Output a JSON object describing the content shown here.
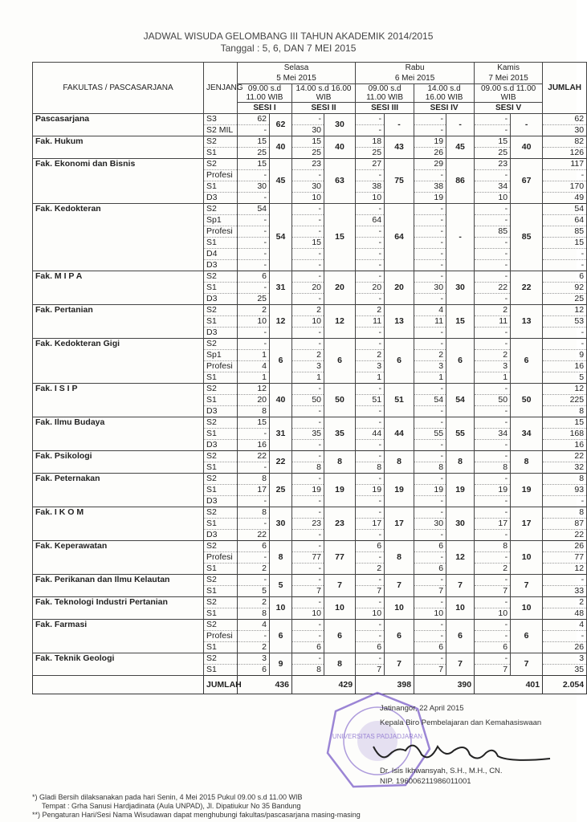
{
  "title": "JADWAL WISUDA GELOMBANG III TAHUN AKADEMIK 2014/2015",
  "subtitle": "Tanggal :  5, 6, DAN 7 MEI 2015",
  "header": {
    "faculty": "FAKULTAS / PASCASARJANA",
    "level": "JENJANG",
    "total": "JUMLAH",
    "days": [
      {
        "day": "Selasa",
        "date": "5 Mei 2015"
      },
      {
        "day": "Rabu",
        "date": "6 Mei 2015"
      },
      {
        "day": "Kamis",
        "date": "7 Mei 2015"
      }
    ],
    "times": [
      "09.00 s.d 11.00 WIB",
      "14.00 s.d 16.00 WIB",
      "09.00 s.d 11.00 WIB",
      "14.00 s.d 16.00 WIB",
      "09.00 s.d 11.00 WIB"
    ],
    "sessions": [
      "SESI I",
      "SESI II",
      "SESI III",
      "SESI IV",
      "SESI V"
    ]
  },
  "faculties": [
    {
      "name": "Pascasarjana",
      "totals": [
        "62",
        "30",
        "-",
        "-",
        "-"
      ],
      "rows": [
        {
          "level": "S3",
          "s": [
            "62",
            "-",
            "-",
            "-",
            "-"
          ],
          "total": "62"
        },
        {
          "level": "S2 MIL",
          "s": [
            "-",
            "30",
            "-",
            "-",
            "-"
          ],
          "total": "30"
        }
      ]
    },
    {
      "name": "Fak. Hukum",
      "totals": [
        "40",
        "40",
        "43",
        "45",
        "40"
      ],
      "rows": [
        {
          "level": "S2",
          "s": [
            "15",
            "15",
            "18",
            "19",
            "15"
          ],
          "total": "82"
        },
        {
          "level": "S1",
          "s": [
            "25",
            "25",
            "25",
            "26",
            "25"
          ],
          "total": "126"
        }
      ]
    },
    {
      "name": "Fak. Ekonomi dan Bisnis",
      "totals": [
        "45",
        "63",
        "75",
        "86",
        "67"
      ],
      "rows": [
        {
          "level": "S2",
          "s": [
            "15",
            "23",
            "27",
            "29",
            "23"
          ],
          "total": "117"
        },
        {
          "level": "Profesi",
          "s": [
            "-",
            "-",
            "-",
            "-",
            "-"
          ],
          "total": "-"
        },
        {
          "level": "S1",
          "s": [
            "30",
            "30",
            "38",
            "38",
            "34"
          ],
          "total": "170"
        },
        {
          "level": "D3",
          "s": [
            "-",
            "10",
            "10",
            "19",
            "10"
          ],
          "total": "49"
        }
      ]
    },
    {
      "name": "Fak. Kedokteran",
      "totals": [
        "54",
        "15",
        "64",
        "-",
        "85"
      ],
      "rows": [
        {
          "level": "S2",
          "s": [
            "54",
            "-",
            "-",
            "-",
            "-"
          ],
          "total": "54"
        },
        {
          "level": "Sp1",
          "s": [
            "-",
            "-",
            "64",
            "-",
            "-"
          ],
          "total": "64"
        },
        {
          "level": "Profesi",
          "s": [
            "-",
            "-",
            "-",
            "-",
            "85"
          ],
          "total": "85"
        },
        {
          "level": "S1",
          "s": [
            "-",
            "15",
            "-",
            "-",
            "-"
          ],
          "total": "15"
        },
        {
          "level": "D4",
          "s": [
            "-",
            "-",
            "-",
            "-",
            "-"
          ],
          "total": "-"
        },
        {
          "level": "D3",
          "s": [
            "-",
            "-",
            "-",
            "-",
            "-"
          ],
          "total": "-"
        }
      ]
    },
    {
      "name": "Fak. M I P A",
      "totals": [
        "31",
        "20",
        "20",
        "30",
        "22"
      ],
      "rows": [
        {
          "level": "S2",
          "s": [
            "6",
            "-",
            "-",
            "-",
            "-"
          ],
          "total": "6"
        },
        {
          "level": "S1",
          "s": [
            "-",
            "20",
            "20",
            "30",
            "22"
          ],
          "total": "92"
        },
        {
          "level": "D3",
          "s": [
            "25",
            "-",
            "-",
            "-",
            "-"
          ],
          "total": "25"
        }
      ]
    },
    {
      "name": "Fak. Pertanian",
      "totals": [
        "12",
        "12",
        "13",
        "15",
        "13"
      ],
      "rows": [
        {
          "level": "S2",
          "s": [
            "2",
            "2",
            "2",
            "4",
            "2"
          ],
          "total": "12"
        },
        {
          "level": "S1",
          "s": [
            "10",
            "10",
            "11",
            "11",
            "11"
          ],
          "total": "53"
        },
        {
          "level": "D3",
          "s": [
            "-",
            "-",
            "-",
            "-",
            "-"
          ],
          "total": "-"
        }
      ]
    },
    {
      "name": "Fak. Kedokteran Gigi",
      "totals": [
        "6",
        "6",
        "6",
        "6",
        "6"
      ],
      "rows": [
        {
          "level": "S2",
          "s": [
            "-",
            "-",
            "-",
            "-",
            "-"
          ],
          "total": "-"
        },
        {
          "level": "Sp1",
          "s": [
            "1",
            "2",
            "2",
            "2",
            "2"
          ],
          "total": "9"
        },
        {
          "level": "Profesi",
          "s": [
            "4",
            "3",
            "3",
            "3",
            "3"
          ],
          "total": "16"
        },
        {
          "level": "S1",
          "s": [
            "1",
            "1",
            "1",
            "1",
            "1"
          ],
          "total": "5"
        }
      ]
    },
    {
      "name": "Fak. I S I P",
      "totals": [
        "40",
        "50",
        "51",
        "54",
        "50"
      ],
      "rows": [
        {
          "level": "S2",
          "s": [
            "12",
            "-",
            "-",
            "-",
            "-"
          ],
          "total": "12"
        },
        {
          "level": "S1",
          "s": [
            "20",
            "50",
            "51",
            "54",
            "50"
          ],
          "total": "225"
        },
        {
          "level": "D3",
          "s": [
            "8",
            "-",
            "-",
            "-",
            "-"
          ],
          "total": "8"
        }
      ]
    },
    {
      "name": "Fak. Ilmu Budaya",
      "totals": [
        "31",
        "35",
        "44",
        "55",
        "34"
      ],
      "rows": [
        {
          "level": "S2",
          "s": [
            "15",
            "-",
            "-",
            "-",
            "-"
          ],
          "total": "15"
        },
        {
          "level": "S1",
          "s": [
            "-",
            "35",
            "44",
            "55",
            "34"
          ],
          "total": "168"
        },
        {
          "level": "D3",
          "s": [
            "16",
            "-",
            "-",
            "-",
            "-"
          ],
          "total": "16"
        }
      ]
    },
    {
      "name": "Fak. Psikologi",
      "totals": [
        "22",
        "8",
        "8",
        "8",
        "8"
      ],
      "rows": [
        {
          "level": "S2",
          "s": [
            "22",
            "-",
            "-",
            "-",
            "-"
          ],
          "total": "22"
        },
        {
          "level": "S1",
          "s": [
            "-",
            "8",
            "8",
            "8",
            "8"
          ],
          "total": "32"
        }
      ]
    },
    {
      "name": "Fak. Peternakan",
      "totals": [
        "25",
        "19",
        "19",
        "19",
        "19"
      ],
      "rows": [
        {
          "level": "S2",
          "s": [
            "8",
            "-",
            "-",
            "-",
            "-"
          ],
          "total": "8"
        },
        {
          "level": "S1",
          "s": [
            "17",
            "19",
            "19",
            "19",
            "19"
          ],
          "total": "93"
        },
        {
          "level": "D3",
          "s": [
            "-",
            "-",
            "-",
            "-",
            "-"
          ],
          "total": "-"
        }
      ]
    },
    {
      "name": "Fak. I K O M",
      "totals": [
        "30",
        "23",
        "17",
        "30",
        "17"
      ],
      "rows": [
        {
          "level": "S2",
          "s": [
            "8",
            "-",
            "-",
            "-",
            "-"
          ],
          "total": "8"
        },
        {
          "level": "S1",
          "s": [
            "-",
            "23",
            "17",
            "30",
            "17"
          ],
          "total": "87"
        },
        {
          "level": "D3",
          "s": [
            "22",
            "-",
            "-",
            "-",
            "-"
          ],
          "total": "22"
        }
      ]
    },
    {
      "name": "Fak. Keperawatan",
      "totals": [
        "8",
        "77",
        "8",
        "12",
        "10"
      ],
      "rows": [
        {
          "level": "S2",
          "s": [
            "6",
            "-",
            "6",
            "6",
            "8"
          ],
          "total": "26"
        },
        {
          "level": "Profesi",
          "s": [
            "-",
            "77",
            "-",
            "-",
            "-"
          ],
          "total": "77"
        },
        {
          "level": "S1",
          "s": [
            "2",
            "-",
            "2",
            "6",
            "2"
          ],
          "total": "12"
        }
      ]
    },
    {
      "name": "Fak. Perikanan dan Ilmu Kelautan",
      "totals": [
        "5",
        "7",
        "7",
        "7",
        "7"
      ],
      "rows": [
        {
          "level": "S2",
          "s": [
            "-",
            "-",
            "-",
            "-",
            "-"
          ],
          "total": "-"
        },
        {
          "level": "S1",
          "s": [
            "5",
            "7",
            "7",
            "7",
            "7"
          ],
          "total": "33"
        }
      ]
    },
    {
      "name": "Fak. Teknologi Industri Pertanian",
      "totals": [
        "10",
        "10",
        "10",
        "10",
        "10"
      ],
      "rows": [
        {
          "level": "S2",
          "s": [
            "2",
            "-",
            "-",
            "-",
            "-"
          ],
          "total": "2"
        },
        {
          "level": "S1",
          "s": [
            "8",
            "10",
            "10",
            "10",
            "10"
          ],
          "total": "48"
        }
      ]
    },
    {
      "name": "Fak. Farmasi",
      "totals": [
        "6",
        "6",
        "6",
        "6",
        "6"
      ],
      "rows": [
        {
          "level": "S2",
          "s": [
            "4",
            "-",
            "-",
            "-",
            "-"
          ],
          "total": "4"
        },
        {
          "level": "Profesi",
          "s": [
            "-",
            "-",
            "-",
            "-",
            "-"
          ],
          "total": "-"
        },
        {
          "level": "S1",
          "s": [
            "2",
            "6",
            "6",
            "6",
            "6"
          ],
          "total": "26"
        }
      ]
    },
    {
      "name": "Fak. Teknik Geologi",
      "totals": [
        "9",
        "8",
        "7",
        "7",
        "7"
      ],
      "rows": [
        {
          "level": "S2",
          "s": [
            "3",
            "-",
            "-",
            "-",
            "-"
          ],
          "total": "3"
        },
        {
          "level": "S1",
          "s": [
            "6",
            "8",
            "7",
            "7",
            "7"
          ],
          "total": "35"
        }
      ]
    }
  ],
  "grand": {
    "label": "JUMLAH",
    "totals": [
      "436",
      "429",
      "398",
      "390",
      "401"
    ],
    "total": "2.054"
  },
  "signature": {
    "place_date": "Jatinangor, 22 April 2015",
    "position": "Kepala Biro Pembelajaran dan Kemahasiswaan",
    "name": "Dr. Isis Ikhwansyah, S.H., M.H., CN.",
    "nip": "NIP. 196006211986011001"
  },
  "stamp_text": "UNIVERSITAS PADJADJARAN",
  "notes": [
    "*)  Gladi Bersih dilaksanakan pada hari Senin,  4 Mei 2015  Pukul 09.00 s.d 11.00 WIB",
    "Tempat : Grha Sanusi Hardjadinata (Aula UNPAD), Jl. Dipatiukur No 35 Bandung",
    "**) Pengaturan Hari/Sesi Nama Wisudawan dapat menghubungi fakultas/pascasarjana masing-masing"
  ],
  "colors": {
    "stamp": "#7a5cc8",
    "ink": "#222222"
  }
}
